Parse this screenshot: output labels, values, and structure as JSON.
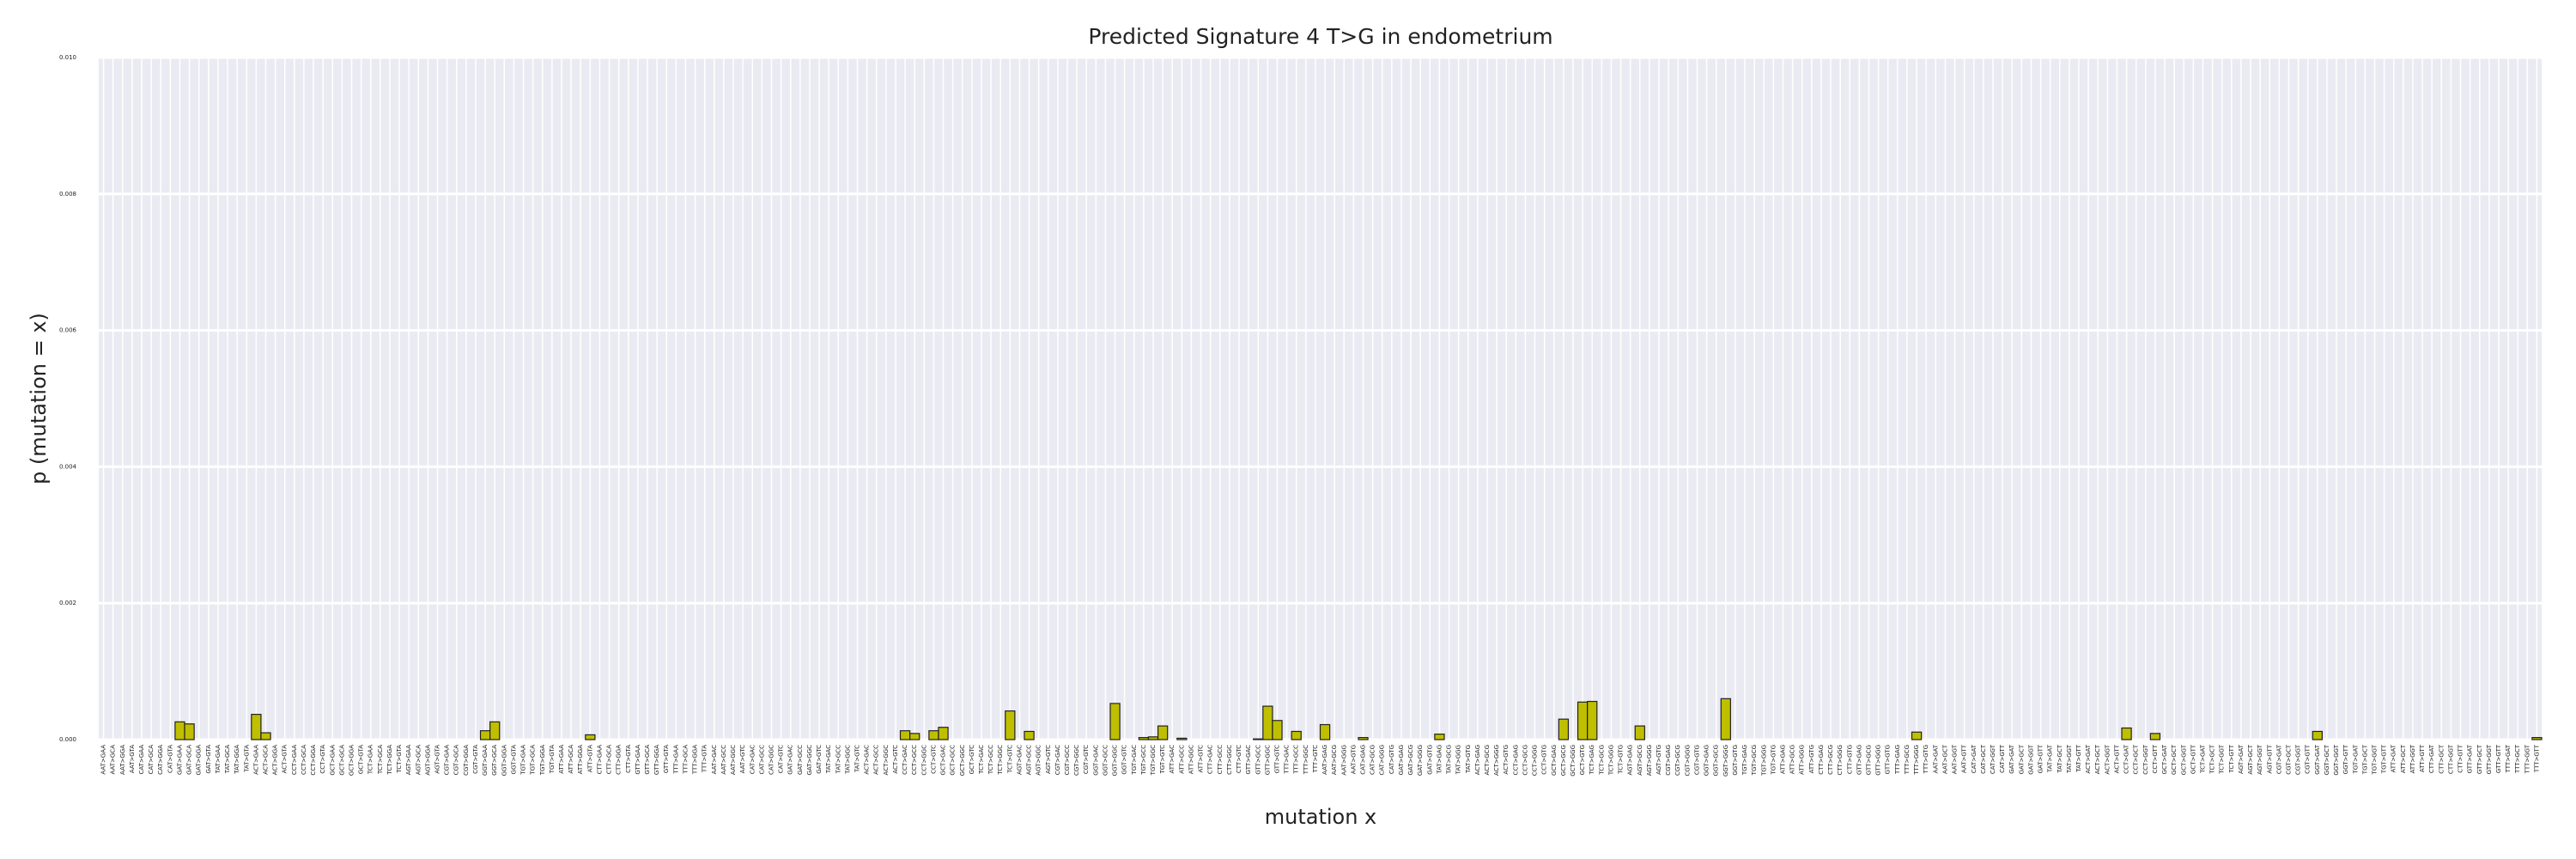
{
  "chart_data": {
    "type": "bar",
    "title": "Predicted Signature 4 T>G in endometrium",
    "xlabel": "mutation x",
    "ylabel": "p (mutation = x)",
    "color": "#bfbf00",
    "edgecolor": "#222222",
    "grid": true,
    "ylim": [
      0,
      0.01
    ],
    "yticks": [
      {
        "value": 0,
        "label": "0.000"
      },
      {
        "value": 0.002,
        "label": "0.002"
      },
      {
        "value": 0.004,
        "label": "0.004"
      },
      {
        "value": 0.006,
        "label": "0.006"
      },
      {
        "value": 0.008,
        "label": "0.008"
      },
      {
        "value": 0.01,
        "label": "0.010"
      }
    ],
    "categories": [
      "AAT>GAA",
      "AAT>GCA",
      "AAT>GGA",
      "AAT>GTA",
      "CAT>GAA",
      "CAT>GCA",
      "CAT>GGA",
      "CAT>GTA",
      "GAT>GAA",
      "GAT>GCA",
      "GAT>GGA",
      "GAT>GTA",
      "TAT>GAA",
      "TAT>GCA",
      "TAT>GGA",
      "TAT>GTA",
      "ACT>GAA",
      "ACT>GCA",
      "ACT>GGA",
      "ACT>GTA",
      "CCT>GAA",
      "CCT>GCA",
      "CCT>GGA",
      "CCT>GTA",
      "GCT>GAA",
      "GCT>GCA",
      "GCT>GGA",
      "GCT>GTA",
      "TCT>GAA",
      "TCT>GCA",
      "TCT>GGA",
      "TCT>GTA",
      "AGT>GAA",
      "AGT>GCA",
      "AGT>GGA",
      "AGT>GTA",
      "CGT>GAA",
      "CGT>GCA",
      "CGT>GGA",
      "CGT>GTA",
      "GGT>GAA",
      "GGT>GCA",
      "GGT>GGA",
      "GGT>GTA",
      "TGT>GAA",
      "TGT>GCA",
      "TGT>GGA",
      "TGT>GTA",
      "ATT>GAA",
      "ATT>GCA",
      "ATT>GGA",
      "ATT>GTA",
      "CTT>GAA",
      "CTT>GCA",
      "CTT>GGA",
      "CTT>GTA",
      "GTT>GAA",
      "GTT>GCA",
      "GTT>GGA",
      "GTT>GTA",
      "TTT>GAA",
      "TTT>GCA",
      "TTT>GGA",
      "TTT>GTA",
      "AAT>GAC",
      "AAT>GCC",
      "AAT>GGC",
      "AAT>GTC",
      "CAT>GAC",
      "CAT>GCC",
      "CAT>GGC",
      "CAT>GTC",
      "GAT>GAC",
      "GAT>GCC",
      "GAT>GGC",
      "GAT>GTC",
      "TAT>GAC",
      "TAT>GCC",
      "TAT>GGC",
      "TAT>GTC",
      "ACT>GAC",
      "ACT>GCC",
      "ACT>GGC",
      "ACT>GTC",
      "CCT>GAC",
      "CCT>GCC",
      "CCT>GGC",
      "CCT>GTC",
      "GCT>GAC",
      "GCT>GCC",
      "GCT>GGC",
      "GCT>GTC",
      "TCT>GAC",
      "TCT>GCC",
      "TCT>GGC",
      "TCT>GTC",
      "AGT>GAC",
      "AGT>GCC",
      "AGT>GGC",
      "AGT>GTC",
      "CGT>GAC",
      "CGT>GCC",
      "CGT>GGC",
      "CGT>GTC",
      "GGT>GAC",
      "GGT>GCC",
      "GGT>GGC",
      "GGT>GTC",
      "TGT>GAC",
      "TGT>GCC",
      "TGT>GGC",
      "TGT>GTC",
      "ATT>GAC",
      "ATT>GCC",
      "ATT>GGC",
      "ATT>GTC",
      "CTT>GAC",
      "CTT>GCC",
      "CTT>GGC",
      "CTT>GTC",
      "GTT>GAC",
      "GTT>GCC",
      "GTT>GGC",
      "GTT>GTC",
      "TTT>GAC",
      "TTT>GCC",
      "TTT>GGC",
      "TTT>GTC",
      "AAT>GAG",
      "AAT>GCG",
      "AAT>GGG",
      "AAT>GTG",
      "CAT>GAG",
      "CAT>GCG",
      "CAT>GGG",
      "CAT>GTG",
      "GAT>GAG",
      "GAT>GCG",
      "GAT>GGG",
      "GAT>GTG",
      "TAT>GAG",
      "TAT>GCG",
      "TAT>GGG",
      "TAT>GTG",
      "ACT>GAG",
      "ACT>GCG",
      "ACT>GGG",
      "ACT>GTG",
      "CCT>GAG",
      "CCT>GCG",
      "CCT>GGG",
      "CCT>GTG",
      "GCT>GAG",
      "GCT>GCG",
      "GCT>GGG",
      "GCT>GTG",
      "TCT>GAG",
      "TCT>GCG",
      "TCT>GGG",
      "TCT>GTG",
      "AGT>GAG",
      "AGT>GCG",
      "AGT>GGG",
      "AGT>GTG",
      "CGT>GAG",
      "CGT>GCG",
      "CGT>GGG",
      "CGT>GTG",
      "GGT>GAG",
      "GGT>GCG",
      "GGT>GGG",
      "GGT>GTG",
      "TGT>GAG",
      "TGT>GCG",
      "TGT>GGG",
      "TGT>GTG",
      "ATT>GAG",
      "ATT>GCG",
      "ATT>GGG",
      "ATT>GTG",
      "CTT>GAG",
      "CTT>GCG",
      "CTT>GGG",
      "CTT>GTG",
      "GTT>GAG",
      "GTT>GCG",
      "GTT>GGG",
      "GTT>GTG",
      "TTT>GAG",
      "TTT>GCG",
      "TTT>GGG",
      "TTT>GTG",
      "AAT>GAT",
      "AAT>GCT",
      "AAT>GGT",
      "AAT>GTT",
      "CAT>GAT",
      "CAT>GCT",
      "CAT>GGT",
      "CAT>GTT",
      "GAT>GAT",
      "GAT>GCT",
      "GAT>GGT",
      "GAT>GTT",
      "TAT>GAT",
      "TAT>GCT",
      "TAT>GGT",
      "TAT>GTT",
      "ACT>GAT",
      "ACT>GCT",
      "ACT>GGT",
      "ACT>GTT",
      "CCT>GAT",
      "CCT>GCT",
      "CCT>GGT",
      "CCT>GTT",
      "GCT>GAT",
      "GCT>GCT",
      "GCT>GGT",
      "GCT>GTT",
      "TCT>GAT",
      "TCT>GCT",
      "TCT>GGT",
      "TCT>GTT",
      "AGT>GAT",
      "AGT>GCT",
      "AGT>GGT",
      "AGT>GTT",
      "CGT>GAT",
      "CGT>GCT",
      "CGT>GGT",
      "CGT>GTT",
      "GGT>GAT",
      "GGT>GCT",
      "GGT>GGT",
      "GGT>GTT",
      "TGT>GAT",
      "TGT>GCT",
      "TGT>GGT",
      "TGT>GTT",
      "ATT>GAT",
      "ATT>GCT",
      "ATT>GGT",
      "ATT>GTT",
      "CTT>GAT",
      "CTT>GCT",
      "CTT>GGT",
      "CTT>GTT",
      "GTT>GAT",
      "GTT>GCT",
      "GTT>GGT",
      "GTT>GTT",
      "TTT>GAT",
      "TTT>GCT",
      "TTT>GGT",
      "TTT>GTT"
    ],
    "values": [
      0,
      0,
      0,
      0,
      0,
      0,
      0,
      0,
      0.00026,
      0.00023,
      0,
      0,
      0,
      0,
      0,
      0,
      0.00037,
      0.0001,
      0,
      0,
      0,
      0,
      0,
      0,
      0,
      0,
      0,
      0,
      0,
      0,
      0,
      0,
      0,
      0,
      0,
      0,
      0,
      0,
      0,
      0,
      0.00013,
      0.00026,
      0,
      0,
      0,
      0,
      0,
      0,
      0,
      0,
      0,
      7e-05,
      0,
      0,
      0,
      0,
      0,
      0,
      0,
      0,
      0,
      0,
      0,
      0,
      0,
      0,
      0,
      0,
      0,
      0,
      0,
      0,
      0,
      0,
      0,
      0,
      0,
      0,
      0,
      0,
      0,
      0,
      0,
      0,
      0.00013,
      9e-05,
      0,
      0.00013,
      0.00018,
      0,
      0,
      0,
      0,
      0,
      0,
      0.00042,
      0,
      0.00012,
      0,
      0,
      0,
      0,
      0,
      0,
      0,
      0,
      0.00053,
      0,
      0,
      3e-05,
      4e-05,
      0.0002,
      0,
      2e-05,
      0,
      0,
      0,
      0,
      0,
      0,
      0,
      1e-05,
      0.00049,
      0.00028,
      0,
      0.00012,
      0,
      0,
      0.00022,
      0,
      0,
      0,
      3e-05,
      0,
      0,
      0,
      0,
      0,
      0,
      0,
      8e-05,
      0,
      0,
      0,
      0,
      0,
      0,
      0,
      0,
      0,
      0,
      0,
      0,
      0.0003,
      0,
      0.00055,
      0.00056,
      0,
      0,
      0,
      0,
      0.0002,
      0,
      0,
      0,
      0,
      0,
      0,
      0,
      0,
      0.0006,
      0,
      0,
      0,
      0,
      0,
      0,
      0,
      0,
      0,
      0,
      0,
      0,
      0,
      0,
      0,
      0,
      0,
      0,
      0,
      0.00011,
      0,
      0,
      0,
      0,
      0,
      0,
      0,
      0,
      0,
      0,
      0,
      0,
      0,
      0,
      0,
      0,
      0,
      0,
      0,
      0,
      0,
      0.00017,
      0,
      0,
      9e-05,
      0,
      0,
      0,
      0,
      0,
      0,
      0,
      0,
      0,
      0,
      0,
      0,
      0,
      0,
      0,
      0,
      0.00012,
      0,
      0,
      0,
      0,
      0,
      0,
      0,
      0,
      0,
      0,
      0,
      0,
      0,
      0,
      0,
      0,
      0,
      0,
      0,
      0,
      0,
      0,
      3e-05
    ]
  }
}
